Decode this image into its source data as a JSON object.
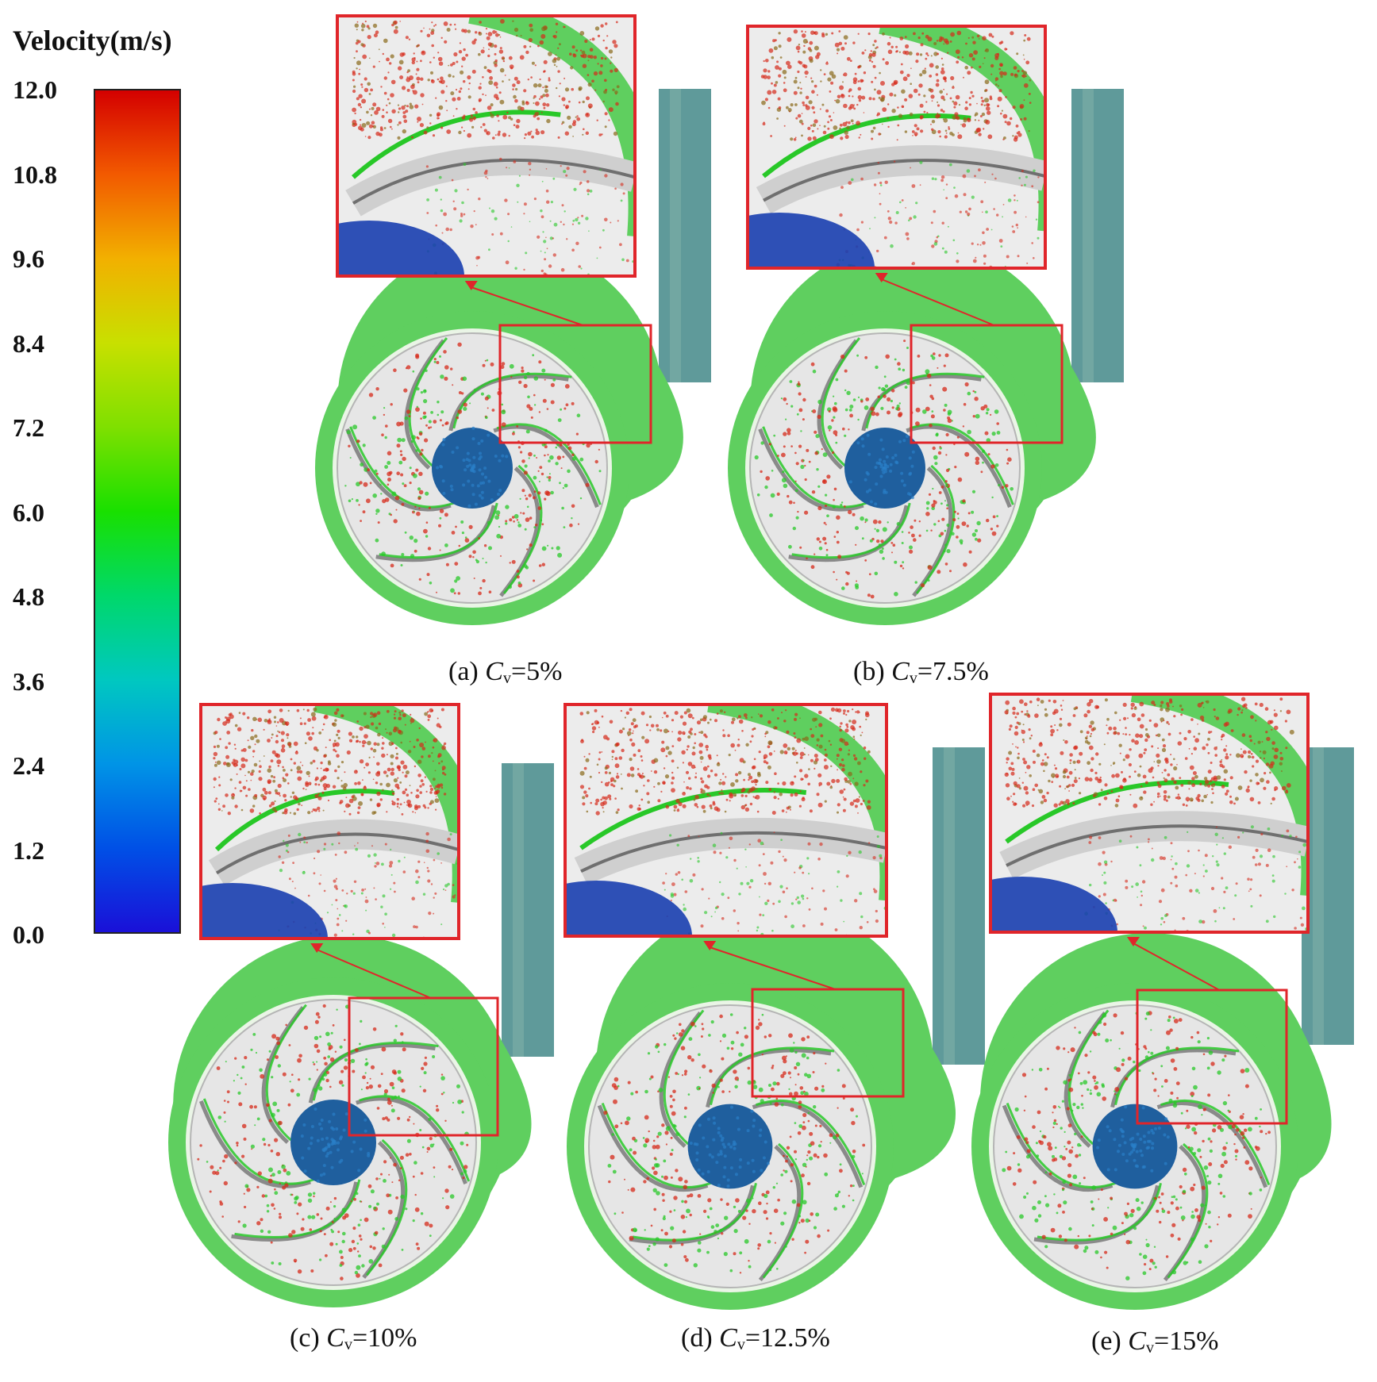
{
  "legend": {
    "title": "Velocity(m/s)",
    "ticks": [
      "12.0",
      "10.8",
      "9.6",
      "8.4",
      "7.2",
      "6.0",
      "4.8",
      "3.6",
      "2.4",
      "1.2",
      "0.0"
    ],
    "colors": [
      "#d40000",
      "#f25a00",
      "#f2b000",
      "#c8e000",
      "#7fe000",
      "#19e000",
      "#00d86a",
      "#00c8c0",
      "#0094e6",
      "#0050e6",
      "#1a10d8"
    ]
  },
  "panels": [
    {
      "id": "a",
      "caption_prefix": "(a) ",
      "symbol": "C",
      "subscript": "v",
      "value": "=5%"
    },
    {
      "id": "b",
      "caption_prefix": "(b) ",
      "symbol": "C",
      "subscript": "v",
      "value": "=7.5%"
    },
    {
      "id": "c",
      "caption_prefix": "(c) ",
      "symbol": "C",
      "subscript": "v",
      "value": "=10%"
    },
    {
      "id": "d",
      "caption_prefix": "(d) ",
      "symbol": "C",
      "subscript": "v",
      "value": "=12.5%"
    },
    {
      "id": "e",
      "caption_prefix": "(e) ",
      "symbol": "C",
      "subscript": "v",
      "value": "=15%"
    }
  ],
  "palette": {
    "casing": "#5fcf5f",
    "casing_dark": "#3fae3f",
    "impeller": "#e6e6e6",
    "blade": "#8a8a8a",
    "hub": "#1f5f9e",
    "particles_red": "#d62a1a",
    "particles_green": "#28c828",
    "outlet": "#5f9a9a",
    "frame": "#e0252a"
  }
}
